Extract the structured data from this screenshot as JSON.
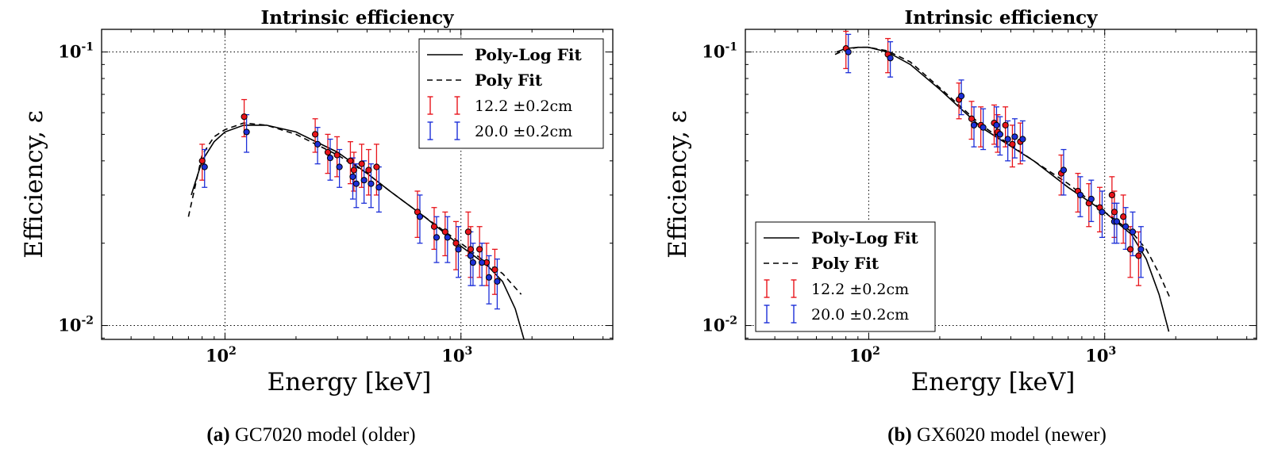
{
  "chart_data": [
    {
      "type": "scatter",
      "title": "Intrinsic efficiency",
      "xlabel": "Energy [keV]",
      "ylabel": "Efficiency, ε",
      "xscale": "log",
      "yscale": "log",
      "xlim": [
        30,
        4400
      ],
      "ylim": [
        0.0089,
        0.121
      ],
      "xticks": [
        {
          "value": 100,
          "base": "10",
          "exp": "2"
        },
        {
          "value": 1000,
          "base": "10",
          "exp": "3"
        }
      ],
      "yticks": [
        {
          "value": 0.01,
          "base": "10",
          "exp": "-2"
        },
        {
          "value": 0.1,
          "base": "10",
          "exp": "-1"
        }
      ],
      "grid": true,
      "legend_position": "upper-right",
      "caption": {
        "tag": "(a)",
        "text": "GC7020 model (older)"
      },
      "fits": [
        {
          "name": "Poly-Log Fit",
          "style": "solid",
          "x": [
            72,
            80,
            90,
            100,
            120,
            150,
            200,
            300,
            400,
            500,
            700,
            1000,
            1300,
            1500,
            1700,
            1850
          ],
          "y": [
            0.03,
            0.04,
            0.047,
            0.051,
            0.054,
            0.054,
            0.051,
            0.043,
            0.036,
            0.031,
            0.025,
            0.0195,
            0.0165,
            0.0145,
            0.0115,
            0.0089
          ]
        },
        {
          "name": "Poly Fit",
          "style": "dashed",
          "x": [
            70,
            80,
            90,
            100,
            120,
            150,
            200,
            300,
            400,
            500,
            700,
            1000,
            1300,
            1500,
            1800
          ],
          "y": [
            0.025,
            0.042,
            0.049,
            0.052,
            0.055,
            0.054,
            0.05,
            0.042,
            0.036,
            0.031,
            0.025,
            0.02,
            0.0168,
            0.0155,
            0.013
          ]
        }
      ],
      "series": [
        {
          "name": "12.2 ±0.2cm",
          "color": "#e8141b",
          "x": [
            81,
            122,
            244,
            276,
            302,
            344,
            356,
            384,
            411,
            444,
            662,
            779,
            867,
            964,
            1086,
            1112,
            1213,
            1299,
            1408
          ],
          "y": [
            0.04,
            0.058,
            0.05,
            0.043,
            0.042,
            0.04,
            0.037,
            0.039,
            0.037,
            0.038,
            0.026,
            0.023,
            0.022,
            0.02,
            0.022,
            0.019,
            0.019,
            0.017,
            0.016
          ],
          "err": [
            0.006,
            0.009,
            0.007,
            0.007,
            0.007,
            0.007,
            0.006,
            0.007,
            0.007,
            0.008,
            0.005,
            0.004,
            0.004,
            0.004,
            0.004,
            0.004,
            0.004,
            0.003,
            0.003
          ]
        },
        {
          "name": "20.0 ±0.2cm",
          "color": "#1c2fd8",
          "x": [
            81,
            122,
            244,
            276,
            302,
            344,
            356,
            384,
            411,
            444,
            662,
            779,
            867,
            964,
            1086,
            1112,
            1213,
            1299,
            1408
          ],
          "y": [
            0.038,
            0.051,
            0.046,
            0.041,
            0.038,
            0.035,
            0.033,
            0.034,
            0.033,
            0.032,
            0.025,
            0.021,
            0.021,
            0.019,
            0.018,
            0.017,
            0.017,
            0.015,
            0.0145
          ],
          "err": [
            0.006,
            0.008,
            0.007,
            0.007,
            0.006,
            0.006,
            0.006,
            0.006,
            0.006,
            0.006,
            0.005,
            0.004,
            0.004,
            0.004,
            0.004,
            0.003,
            0.003,
            0.003,
            0.003
          ]
        }
      ]
    },
    {
      "type": "scatter",
      "title": "Intrinsic efficiency",
      "xlabel": "Energy [keV]",
      "ylabel": "Efficiency, ε",
      "xscale": "log",
      "yscale": "log",
      "xlim": [
        30,
        4400
      ],
      "ylim": [
        0.0089,
        0.121
      ],
      "xticks": [
        {
          "value": 100,
          "base": "10",
          "exp": "2"
        },
        {
          "value": 1000,
          "base": "10",
          "exp": "3"
        }
      ],
      "yticks": [
        {
          "value": 0.01,
          "base": "10",
          "exp": "-2"
        },
        {
          "value": 0.1,
          "base": "10",
          "exp": "-1"
        }
      ],
      "grid": true,
      "legend_position": "lower-left",
      "caption": {
        "tag": "(b)",
        "text": "GX6020 model (newer)"
      },
      "fits": [
        {
          "name": "Poly-Log Fit",
          "style": "solid",
          "x": [
            73,
            80,
            90,
            100,
            120,
            150,
            200,
            300,
            500,
            700,
            1000,
            1300,
            1500,
            1700,
            1870
          ],
          "y": [
            0.1,
            0.103,
            0.104,
            0.104,
            0.1,
            0.09,
            0.073,
            0.053,
            0.04,
            0.032,
            0.026,
            0.0215,
            0.0175,
            0.013,
            0.0095
          ]
        },
        {
          "name": "Poly Fit",
          "style": "dashed",
          "x": [
            72,
            80,
            90,
            100,
            120,
            150,
            200,
            300,
            500,
            700,
            1000,
            1300,
            1500,
            1700,
            1900
          ],
          "y": [
            0.098,
            0.102,
            0.104,
            0.104,
            0.101,
            0.092,
            0.074,
            0.054,
            0.04,
            0.033,
            0.026,
            0.022,
            0.019,
            0.0155,
            0.0125
          ]
        },
        {
          "name": "",
          "style": "none",
          "x": [],
          "y": []
        }
      ],
      "series": [
        {
          "name": "12.2 ±0.2cm",
          "color": "#e8141b",
          "x": [
            81,
            122,
            244,
            276,
            302,
            344,
            356,
            384,
            411,
            444,
            662,
            779,
            867,
            964,
            1086,
            1112,
            1213,
            1299,
            1408
          ],
          "y": [
            0.103,
            0.098,
            0.067,
            0.057,
            0.054,
            0.055,
            0.051,
            0.054,
            0.046,
            0.047,
            0.036,
            0.031,
            0.028,
            0.027,
            0.03,
            0.026,
            0.025,
            0.019,
            0.018
          ],
          "err": [
            0.016,
            0.014,
            0.01,
            0.009,
            0.009,
            0.009,
            0.008,
            0.009,
            0.008,
            0.008,
            0.006,
            0.005,
            0.005,
            0.005,
            0.005,
            0.005,
            0.005,
            0.004,
            0.004
          ]
        },
        {
          "name": "20.0 ±0.2cm",
          "color": "#1c2fd8",
          "x": [
            81,
            122,
            244,
            276,
            302,
            344,
            356,
            384,
            411,
            444,
            662,
            779,
            867,
            964,
            1086,
            1112,
            1213,
            1299,
            1408
          ],
          "y": [
            0.1,
            0.095,
            0.069,
            0.054,
            0.053,
            0.054,
            0.05,
            0.048,
            0.049,
            0.048,
            0.037,
            0.03,
            0.029,
            0.026,
            0.024,
            0.024,
            0.023,
            0.022,
            0.019
          ],
          "err": [
            0.016,
            0.014,
            0.01,
            0.009,
            0.009,
            0.009,
            0.008,
            0.008,
            0.008,
            0.008,
            0.007,
            0.005,
            0.005,
            0.005,
            0.004,
            0.004,
            0.004,
            0.004,
            0.004
          ]
        }
      ]
    }
  ]
}
